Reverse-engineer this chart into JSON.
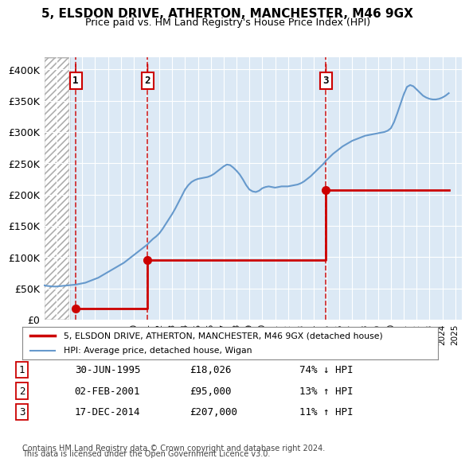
{
  "title1": "5, ELSDON DRIVE, ATHERTON, MANCHESTER, M46 9GX",
  "title2": "Price paid vs. HM Land Registry's House Price Index (HPI)",
  "xlabel": "",
  "ylabel": "",
  "background_color": "#ffffff",
  "plot_bg_color": "#dce9f5",
  "hatch_color": "#c0c0c0",
  "grid_color": "#ffffff",
  "ylim": [
    0,
    420000
  ],
  "yticks": [
    0,
    50000,
    100000,
    150000,
    200000,
    250000,
    300000,
    350000,
    400000
  ],
  "ytick_labels": [
    "£0",
    "£50K",
    "£100K",
    "£150K",
    "£200K",
    "£250K",
    "£300K",
    "£350K",
    "£400K"
  ],
  "xlim_start": 1993.0,
  "xlim_end": 2025.5,
  "xticks": [
    1993,
    1994,
    1995,
    1996,
    1997,
    1998,
    1999,
    2000,
    2001,
    2002,
    2003,
    2004,
    2005,
    2006,
    2007,
    2008,
    2009,
    2010,
    2011,
    2012,
    2013,
    2014,
    2015,
    2016,
    2017,
    2018,
    2019,
    2020,
    2021,
    2022,
    2023,
    2024,
    2025
  ],
  "sale_color": "#cc0000",
  "hpi_color": "#6699cc",
  "sale_dates": [
    1995.5,
    2001.09,
    2014.96
  ],
  "sale_prices": [
    18026,
    95000,
    207000
  ],
  "sale_labels": [
    "1",
    "2",
    "3"
  ],
  "transactions": [
    {
      "label": "1",
      "date": "30-JUN-1995",
      "price": "£18,026",
      "hpi_diff": "74% ↓ HPI"
    },
    {
      "label": "2",
      "date": "02-FEB-2001",
      "price": "£95,000",
      "hpi_diff": "13% ↑ HPI"
    },
    {
      "label": "3",
      "date": "17-DEC-2014",
      "price": "£207,000",
      "hpi_diff": "11% ↑ HPI"
    }
  ],
  "legend_line1": "5, ELSDON DRIVE, ATHERTON, MANCHESTER, M46 9GX (detached house)",
  "legend_line2": "HPI: Average price, detached house, Wigan",
  "footnote1": "Contains HM Land Registry data © Crown copyright and database right 2024.",
  "footnote2": "This data is licensed under the Open Government Licence v3.0.",
  "hpi_x": [
    1993.0,
    1993.25,
    1993.5,
    1993.75,
    1994.0,
    1994.25,
    1994.5,
    1994.75,
    1995.0,
    1995.25,
    1995.5,
    1995.75,
    1996.0,
    1996.25,
    1996.5,
    1996.75,
    1997.0,
    1997.25,
    1997.5,
    1997.75,
    1998.0,
    1998.25,
    1998.5,
    1998.75,
    1999.0,
    1999.25,
    1999.5,
    1999.75,
    2000.0,
    2000.25,
    2000.5,
    2000.75,
    2001.0,
    2001.25,
    2001.5,
    2001.75,
    2002.0,
    2002.25,
    2002.5,
    2002.75,
    2003.0,
    2003.25,
    2003.5,
    2003.75,
    2004.0,
    2004.25,
    2004.5,
    2004.75,
    2005.0,
    2005.25,
    2005.5,
    2005.75,
    2006.0,
    2006.25,
    2006.5,
    2006.75,
    2007.0,
    2007.25,
    2007.5,
    2007.75,
    2008.0,
    2008.25,
    2008.5,
    2008.75,
    2009.0,
    2009.25,
    2009.5,
    2009.75,
    2010.0,
    2010.25,
    2010.5,
    2010.75,
    2011.0,
    2011.25,
    2011.5,
    2011.75,
    2012.0,
    2012.25,
    2012.5,
    2012.75,
    2013.0,
    2013.25,
    2013.5,
    2013.75,
    2014.0,
    2014.25,
    2014.5,
    2014.75,
    2015.0,
    2015.25,
    2015.5,
    2015.75,
    2016.0,
    2016.25,
    2016.5,
    2016.75,
    2017.0,
    2017.25,
    2017.5,
    2017.75,
    2018.0,
    2018.25,
    2018.5,
    2018.75,
    2019.0,
    2019.25,
    2019.5,
    2019.75,
    2020.0,
    2020.25,
    2020.5,
    2020.75,
    2021.0,
    2021.25,
    2021.5,
    2021.75,
    2022.0,
    2022.25,
    2022.5,
    2022.75,
    2023.0,
    2023.25,
    2023.5,
    2023.75,
    2024.0,
    2024.25,
    2024.5
  ],
  "hpi_y": [
    55000,
    54000,
    53500,
    53000,
    53000,
    53500,
    54000,
    54500,
    55000,
    55500,
    56000,
    57000,
    58000,
    59000,
    61000,
    63000,
    65000,
    67000,
    70000,
    73000,
    76000,
    79000,
    82000,
    85000,
    88000,
    91000,
    95000,
    99000,
    103000,
    107000,
    111000,
    115000,
    119000,
    124000,
    129000,
    133000,
    138000,
    145000,
    153000,
    161000,
    169000,
    178000,
    188000,
    198000,
    208000,
    215000,
    220000,
    223000,
    225000,
    226000,
    227000,
    228000,
    230000,
    233000,
    237000,
    241000,
    245000,
    248000,
    247000,
    243000,
    238000,
    232000,
    224000,
    215000,
    208000,
    205000,
    204000,
    206000,
    210000,
    212000,
    213000,
    212000,
    211000,
    212000,
    213000,
    213000,
    213000,
    214000,
    215000,
    216000,
    218000,
    221000,
    225000,
    229000,
    234000,
    239000,
    244000,
    249000,
    255000,
    260000,
    265000,
    269000,
    273000,
    277000,
    280000,
    283000,
    286000,
    288000,
    290000,
    292000,
    294000,
    295000,
    296000,
    297000,
    298000,
    299000,
    300000,
    302000,
    306000,
    316000,
    330000,
    345000,
    360000,
    372000,
    375000,
    373000,
    368000,
    363000,
    358000,
    355000,
    353000,
    352000,
    352000,
    353000,
    355000,
    358000,
    362000
  ]
}
